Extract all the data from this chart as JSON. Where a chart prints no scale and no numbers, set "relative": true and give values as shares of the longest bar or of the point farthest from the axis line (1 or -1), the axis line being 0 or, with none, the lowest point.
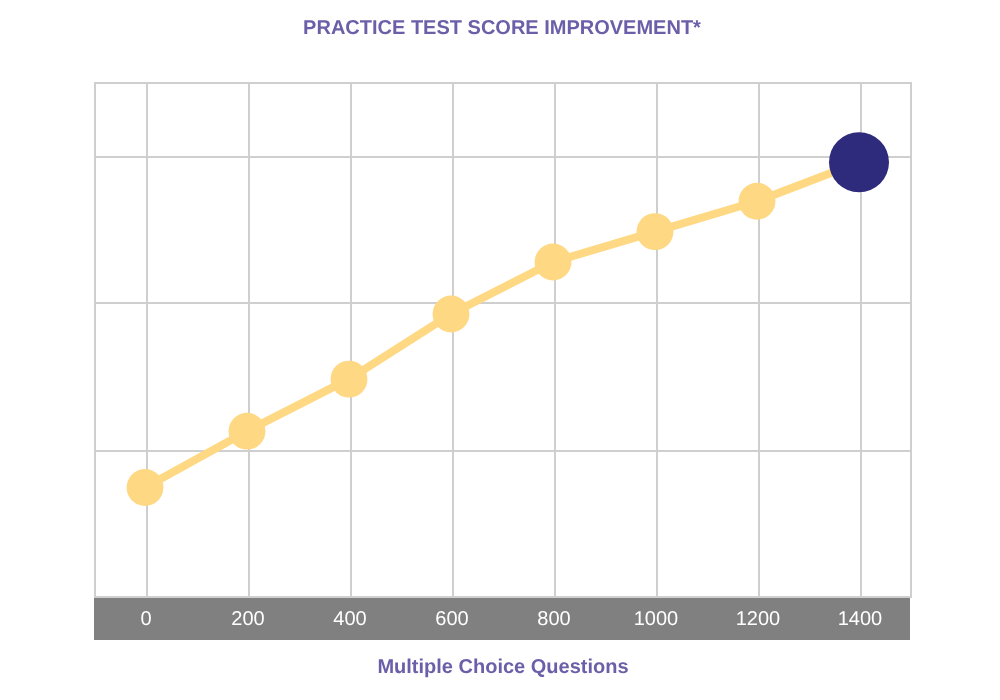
{
  "chart_data": {
    "type": "line",
    "title": "PRACTICE TEST SCORE IMPROVEMENT*",
    "xlabel": "Multiple Choice Questions",
    "categories": [
      "0",
      "200",
      "400",
      "600",
      "800",
      "1000",
      "1200",
      "1400"
    ],
    "relative": true,
    "grid": true,
    "marker": "circle",
    "series": [
      {
        "color": "#fed882",
        "colors": [
          "#fed882",
          "#fed882",
          "#fed882",
          "#fed882",
          "#fed882",
          "#fed882",
          "#fed882",
          "#2e2a7c"
        ],
        "values": [
          0.25,
          0.38,
          0.5,
          0.65,
          0.77,
          0.84,
          0.91,
          1
        ]
      }
    ]
  }
}
